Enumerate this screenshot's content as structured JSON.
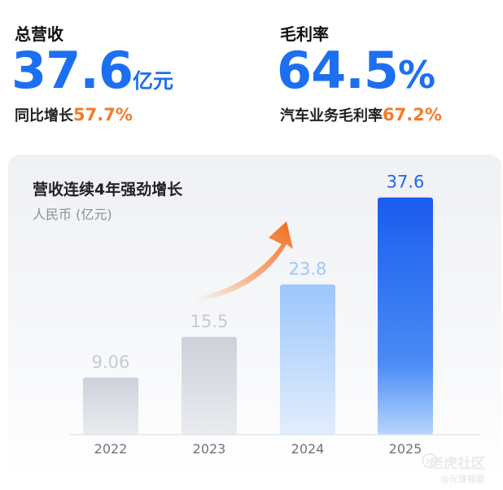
{
  "revenue": {
    "label": "总营收",
    "value": "37.6",
    "unit": "亿元",
    "yoy_label": "同比增长",
    "yoy_value": "57.7%"
  },
  "gross_margin": {
    "label": "毛利率",
    "value": "64.5",
    "percent_sign": "%",
    "auto_label": "汽车业务毛利率",
    "auto_value": "67.2%"
  },
  "chart_data": {
    "type": "bar",
    "title": "营收连续4年强劲增长",
    "ylabel": "人民币 (亿元)",
    "categories": [
      "2022",
      "2023",
      "2024",
      "2025"
    ],
    "values": [
      9.06,
      15.5,
      23.8,
      37.6
    ],
    "value_labels": [
      "9.06",
      "15.5",
      "23.8",
      "37.6"
    ],
    "ylim": [
      0,
      40
    ],
    "grid": false,
    "legend": "none",
    "colors": {
      "gray_bar": "#d3d7df",
      "blue_light": "#a9cdfc",
      "blue_dark": "#1f63f0",
      "label_gray": "#c6cad2",
      "label_blue_light": "#9cc7fb",
      "label_blue_dark": "#2168f0",
      "arrow": "#f57a2a"
    }
  },
  "watermark": {
    "line1": "老虎社区",
    "line2": "@光锥智能"
  }
}
